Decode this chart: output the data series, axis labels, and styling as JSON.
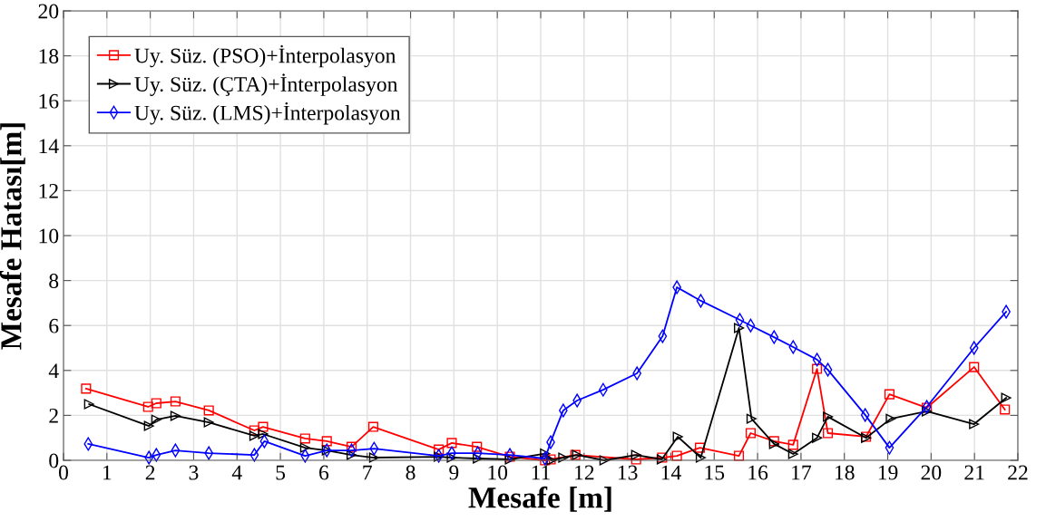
{
  "chart_data": {
    "type": "line",
    "xlabel": "Mesafe [m]",
    "ylabel": "Mesafe Hatası[m]",
    "xlim": [
      0,
      22
    ],
    "xticks": [
      0,
      1,
      2,
      3,
      4,
      5,
      6,
      7,
      8,
      9,
      10,
      11,
      12,
      13,
      14,
      15,
      16,
      17,
      18,
      19,
      20,
      21,
      22
    ],
    "ylim": [
      0,
      20
    ],
    "yticks": [
      0,
      2,
      4,
      6,
      8,
      10,
      12,
      14,
      16,
      18,
      20
    ],
    "grid": true,
    "legend": "top left",
    "line_style": "solid",
    "series": [
      {
        "name": "Uy. Süz. (PSO)+İnterpolasyon",
        "color": "#ff0000",
        "marker": "square",
        "x": [
          0.52,
          1.95,
          2.14,
          2.58,
          3.35,
          4.4,
          4.6,
          5.57,
          6.07,
          6.64,
          7.14,
          8.65,
          8.95,
          9.53,
          10.29,
          11.1,
          11.23,
          11.8,
          13.2,
          13.8,
          14.14,
          14.67,
          15.57,
          15.84,
          16.38,
          16.82,
          17.37,
          17.62,
          18.5,
          19.04,
          19.9,
          20.99,
          21.7
        ],
        "values": [
          3.19,
          2.38,
          2.54,
          2.62,
          2.22,
          1.33,
          1.49,
          0.97,
          0.85,
          0.6,
          1.49,
          0.48,
          0.77,
          0.6,
          0.16,
          0.0,
          0.04,
          0.24,
          0.04,
          0.12,
          0.2,
          0.56,
          0.2,
          1.21,
          0.85,
          0.69,
          4.07,
          1.21,
          1.05,
          2.94,
          2.34,
          4.15,
          2.26
        ]
      },
      {
        "name": "Uy. Süz. (ÇTA)+İnterpolasyon",
        "color": "#000000",
        "marker": "triangle",
        "x": [
          0.59,
          1.97,
          2.14,
          2.58,
          3.35,
          4.4,
          4.6,
          5.57,
          6.07,
          6.64,
          7.16,
          8.65,
          8.95,
          9.55,
          10.29,
          11.1,
          11.25,
          11.52,
          11.84,
          12.47,
          13.2,
          13.79,
          14.16,
          14.69,
          15.57,
          15.86,
          16.38,
          16.82,
          17.37,
          17.62,
          18.5,
          19.07,
          19.9,
          20.99,
          21.73
        ],
        "values": [
          2.5,
          1.53,
          1.81,
          1.98,
          1.69,
          1.09,
          1.17,
          0.56,
          0.44,
          0.24,
          0.12,
          0.16,
          0.12,
          0.08,
          0.04,
          0.3,
          0.0,
          0.12,
          0.24,
          0.0,
          0.24,
          0.04,
          1.05,
          0.12,
          5.89,
          1.85,
          0.73,
          0.28,
          1.0,
          1.94,
          1.0,
          1.85,
          2.18,
          1.61,
          2.78
        ]
      },
      {
        "name": "Uy. Süz. (LMS)+İnterpolasyon",
        "color": "#0000ff",
        "marker": "diamond",
        "x": [
          0.57,
          1.97,
          2.14,
          2.58,
          3.35,
          4.4,
          4.63,
          5.57,
          6.07,
          6.64,
          7.16,
          8.65,
          8.95,
          9.55,
          10.29,
          11.1,
          11.23,
          11.52,
          11.84,
          12.44,
          13.22,
          13.81,
          14.14,
          14.69,
          15.59,
          15.84,
          16.38,
          16.82,
          17.37,
          17.62,
          18.48,
          19.04,
          19.9,
          20.99,
          21.73
        ],
        "values": [
          0.73,
          0.12,
          0.24,
          0.44,
          0.32,
          0.24,
          0.85,
          0.2,
          0.44,
          0.44,
          0.52,
          0.2,
          0.32,
          0.32,
          0.24,
          0.08,
          0.81,
          2.22,
          2.66,
          3.14,
          3.87,
          5.52,
          7.7,
          7.1,
          6.25,
          6.0,
          5.48,
          5.04,
          4.48,
          4.03,
          2.02,
          0.56,
          2.38,
          5.0,
          6.61
        ]
      }
    ]
  }
}
